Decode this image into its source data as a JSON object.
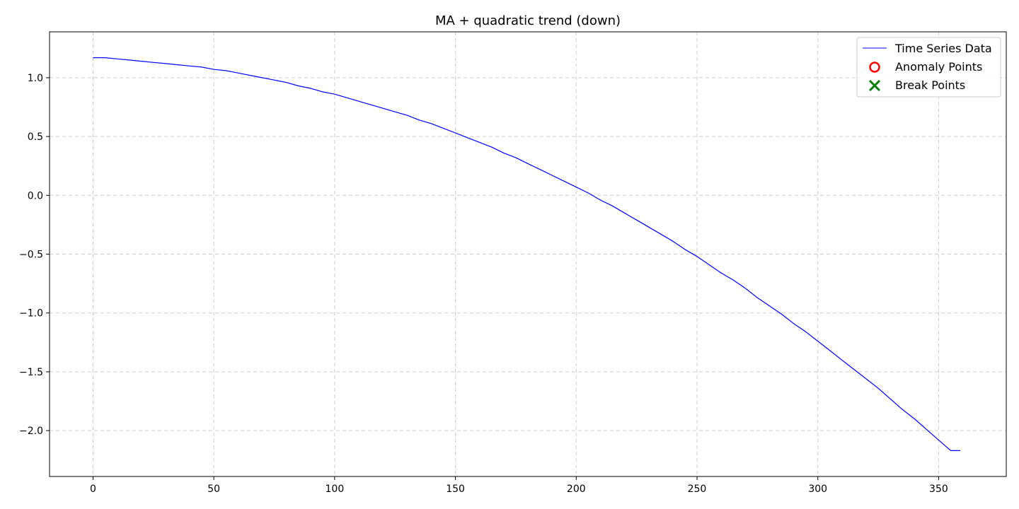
{
  "chart_data": {
    "type": "line",
    "title": "MA + quadratic trend (down)",
    "xlabel": "",
    "ylabel": "",
    "xlim": [
      -18,
      378
    ],
    "ylim": [
      -2.39,
      1.39
    ],
    "x_ticks": [
      0,
      50,
      100,
      150,
      200,
      250,
      300,
      350
    ],
    "x_tick_labels": [
      "0",
      "50",
      "100",
      "150",
      "200",
      "250",
      "300",
      "350"
    ],
    "y_ticks": [
      1.0,
      0.5,
      0.0,
      -0.5,
      -1.0,
      -1.5,
      -2.0
    ],
    "y_tick_labels": [
      "1.0",
      "0.5",
      "0.0",
      "−0.5",
      "−1.0",
      "−1.5",
      "−2.0"
    ],
    "grid": true,
    "legend_position": "top-right",
    "legend": [
      {
        "label": "Time Series Data",
        "marker": "line",
        "color": "#0000ff"
      },
      {
        "label": "Anomaly Points",
        "marker": "circle",
        "color": "#ff0000"
      },
      {
        "label": "Break Points",
        "marker": "x",
        "color": "#008000"
      }
    ],
    "series": [
      {
        "name": "Time Series Data",
        "color": "#0000ff",
        "x": [
          0,
          5,
          10,
          15,
          20,
          25,
          30,
          35,
          40,
          45,
          50,
          55,
          60,
          65,
          70,
          75,
          80,
          85,
          90,
          95,
          100,
          105,
          110,
          115,
          120,
          125,
          130,
          135,
          140,
          145,
          150,
          155,
          160,
          165,
          170,
          175,
          180,
          185,
          190,
          195,
          200,
          205,
          210,
          215,
          220,
          225,
          230,
          235,
          240,
          245,
          250,
          255,
          260,
          265,
          270,
          275,
          280,
          285,
          290,
          295,
          300,
          305,
          310,
          315,
          320,
          325,
          330,
          335,
          340,
          345,
          350,
          355,
          359
        ],
        "y": [
          1.17,
          1.17,
          1.16,
          1.15,
          1.14,
          1.13,
          1.12,
          1.11,
          1.1,
          1.09,
          1.07,
          1.06,
          1.04,
          1.02,
          1.0,
          0.98,
          0.96,
          0.93,
          0.91,
          0.88,
          0.86,
          0.83,
          0.8,
          0.77,
          0.74,
          0.71,
          0.68,
          0.64,
          0.61,
          0.57,
          0.53,
          0.49,
          0.45,
          0.41,
          0.36,
          0.32,
          0.27,
          0.22,
          0.17,
          0.12,
          0.07,
          0.02,
          -0.04,
          -0.09,
          -0.15,
          -0.21,
          -0.27,
          -0.33,
          -0.39,
          -0.46,
          -0.52,
          -0.59,
          -0.66,
          -0.72,
          -0.79,
          -0.87,
          -0.94,
          -1.01,
          -1.09,
          -1.16,
          -1.24,
          -1.32,
          -1.4,
          -1.48,
          -1.56,
          -1.64,
          -1.73,
          -1.82,
          -1.9,
          -1.99,
          -2.08,
          -2.17,
          -2.17
        ]
      }
    ],
    "anomaly_points": [],
    "break_points": []
  }
}
